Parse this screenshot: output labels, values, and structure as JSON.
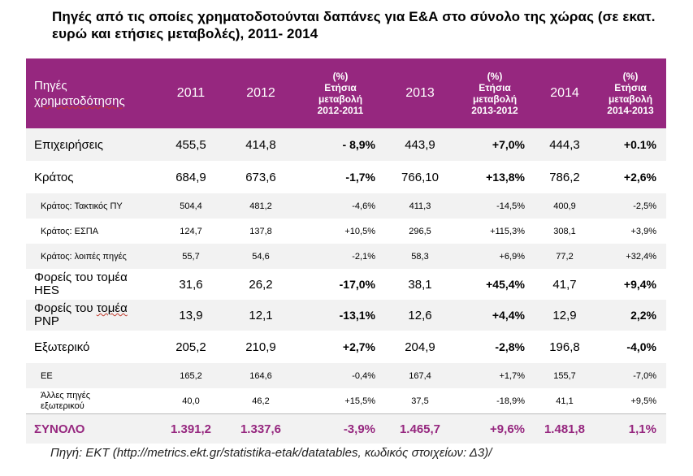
{
  "title": "Πηγές από τις οποίες χρηματοδοτούνται δαπάνες για Ε&Α στο σύνολο της χώρας (σε εκατ. ευρώ και ετήσιες μεταβολές), 2011- 2014",
  "header": {
    "label_line1": "Πηγές",
    "label_line2": "χρηματοδότησης",
    "y2011": "2011",
    "y2012": "2012",
    "p1": [
      "(%)",
      "Ετήσια",
      "μεταβολή",
      "2012-2011"
    ],
    "y2013": "2013",
    "p2": [
      "(%)",
      "Ετήσια",
      "μεταβολή",
      "2013-2012"
    ],
    "y2014": "2014",
    "p3": [
      "(%)",
      "Ετήσια",
      "μεταβολή",
      "2014-2013"
    ]
  },
  "rows": [
    {
      "label": "Επιχειρήσεις",
      "v2011": "455,5",
      "v2012": "414,8",
      "p1": "- 8,9%",
      "v2013": "443,9",
      "p2": "+7,0%",
      "v2014": "444,3",
      "p3": "+0.1%"
    },
    {
      "label": "Κράτος",
      "v2011": "684,9",
      "v2012": "673,6",
      "p1": "-1,7%",
      "v2013": "766,10",
      "p2": "+13,8%",
      "v2014": "786,2",
      "p3": "+2,6%"
    },
    {
      "label": "Κράτος: Τακτικός ΠΥ",
      "v2011": "504,4",
      "v2012": "481,2",
      "p1": "-4,6%",
      "v2013": "411,3",
      "p2": "-14,5%",
      "v2014": "400,9",
      "p3": "-2,5%"
    },
    {
      "label": "Κράτος: ΕΣΠΑ",
      "v2011": "124,7",
      "v2012": "137,8",
      "p1": "+10,5%",
      "v2013": "296,5",
      "p2": "+115,3%",
      "v2014": "308,1",
      "p3": "+3,9%"
    },
    {
      "label": "Κράτος: λοιπές πηγές",
      "v2011": "55,7",
      "v2012": "54,6",
      "p1": "-2,1%",
      "v2013": "58,3",
      "p2": "+6,9%",
      "v2014": "77,2",
      "p3": "+32,4%"
    },
    {
      "label_line1": "Φορείς του τομέα",
      "label_line2": "HES",
      "v2011": "31,6",
      "v2012": "26,2",
      "p1": "-17,0%",
      "v2013": "38,1",
      "p2": "+45,4%",
      "v2014": "41,7",
      "p3": "+9,4%"
    },
    {
      "label_line1a": "Φορείς του ",
      "label_line1b": "τομέα",
      "label_line2": "PNP",
      "v2011": "13,9",
      "v2012": "12,1",
      "p1": "-13,1%",
      "v2013": "12,6",
      "p2": "+4,4%",
      "v2014": "12,9",
      "p3": "2,2%"
    },
    {
      "label": "Εξωτερικό",
      "v2011": "205,2",
      "v2012": "210,9",
      "p1": "+2,7%",
      "v2013": "204,9",
      "p2": "-2,8%",
      "v2014": "196,8",
      "p3": "-4,0%"
    },
    {
      "label": "ΕΕ",
      "v2011": "165,2",
      "v2012": "164,6",
      "p1": "-0,4%",
      "v2013": "167,4",
      "p2": "+1,7%",
      "v2014": "155,7",
      "p3": "-7,0%"
    },
    {
      "label_line1": "Άλλες πηγές",
      "label_line2": "εξωτερικού",
      "v2011": "40,0",
      "v2012": "46,2",
      "p1": "+15,5%",
      "v2013": "37,5",
      "p2": "-18,9%",
      "v2014": "41,1",
      "p3": "+9,5%"
    }
  ],
  "total": {
    "label": "ΣΥΝΟΛΟ",
    "v2011": "1.391,2",
    "v2012": "1.337,6",
    "p1": "-3,9%",
    "v2013": "1.465,7",
    "p2": "+9,6%",
    "v2014": "1.481,8",
    "p3": "1,1%"
  },
  "source": "Πηγή: ΕΚΤ (http://metrics.ekt.gr/statistika-etak/datatables, κωδικός στοιχείων: Δ3)/",
  "colors": {
    "header_bg": "#96277f",
    "total_text": "#96277f",
    "row_shade": "#f2f2f2"
  }
}
